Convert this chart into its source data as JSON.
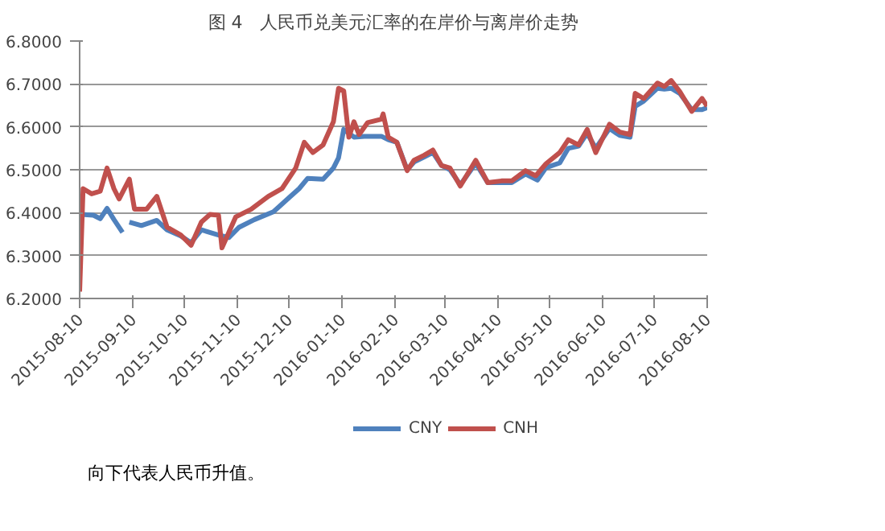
{
  "chart_data": {
    "type": "line",
    "title": "图 4　人民币兑美元汇率的在岸价与离岸价走势",
    "annotations": [
      "向下代表人民币升值。"
    ],
    "xlim": [
      "2015-08-10",
      "2016-08-10"
    ],
    "xticks": [
      "2015-08-10",
      "2015-09-10",
      "2015-10-10",
      "2015-11-10",
      "2015-12-10",
      "2016-01-10",
      "2016-02-10",
      "2016-03-10",
      "2016-04-10",
      "2016-05-10",
      "2016-06-10",
      "2016-07-10",
      "2016-08-10"
    ],
    "ylim": [
      6.2,
      6.8
    ],
    "yticks": [
      {
        "value": 6.2,
        "label": "6.2000"
      },
      {
        "value": 6.3,
        "label": "6.3000"
      },
      {
        "value": 6.4,
        "label": "6.4000"
      },
      {
        "value": 6.5,
        "label": "6.5000"
      },
      {
        "value": 6.6,
        "label": "6.6000"
      },
      {
        "value": 6.7,
        "label": "6.7000"
      },
      {
        "value": 6.8,
        "label": "6.8000"
      }
    ],
    "grid": "y",
    "legend": "bottom",
    "marker": "none",
    "line_style": "solid",
    "series": [
      {
        "name": "CNY",
        "color": "#4f81bd",
        "x": [
          "2015-08-11",
          "2015-08-18",
          "2015-08-22",
          "2015-08-26",
          "2015-08-30",
          "2015-09-04",
          "2015-09-06",
          "2015-09-08",
          "2015-09-15",
          "2015-09-24",
          "2015-09-30",
          "2015-10-08",
          "2015-10-14",
          "2015-10-20",
          "2015-10-30",
          "2015-11-05",
          "2015-11-11",
          "2015-11-20",
          "2015-12-01",
          "2015-12-11",
          "2015-12-16",
          "2015-12-21",
          "2015-12-30",
          "2016-01-05",
          "2016-01-08",
          "2016-01-11",
          "2016-01-17",
          "2016-01-23",
          "2016-02-02",
          "2016-02-06",
          "2016-02-11",
          "2016-02-17",
          "2016-02-21",
          "2016-02-27",
          "2016-03-03",
          "2016-03-08",
          "2016-03-13",
          "2016-03-19",
          "2016-03-28",
          "2016-04-04",
          "2016-04-12",
          "2016-04-18",
          "2016-04-26",
          "2016-05-03",
          "2016-05-08",
          "2016-05-16",
          "2016-05-21",
          "2016-05-27",
          "2016-06-01",
          "2016-06-06",
          "2016-06-14",
          "2016-06-20",
          "2016-06-26",
          "2016-06-29",
          "2016-07-04",
          "2016-07-12",
          "2016-07-16",
          "2016-07-20",
          "2016-07-25",
          "2016-08-01",
          "2016-08-07",
          "2016-08-10"
        ],
        "values": [
          6.396,
          6.394,
          6.386,
          6.41,
          6.384,
          6.354,
          null,
          6.378,
          6.37,
          6.382,
          6.36,
          6.346,
          6.33,
          6.36,
          6.348,
          6.342,
          6.366,
          6.384,
          6.402,
          6.438,
          6.456,
          6.48,
          6.478,
          6.504,
          6.528,
          6.594,
          6.576,
          6.578,
          6.578,
          6.57,
          6.564,
          6.5,
          6.518,
          6.53,
          6.54,
          6.51,
          6.5,
          6.465,
          6.515,
          6.47,
          6.47,
          6.47,
          6.49,
          6.476,
          6.505,
          6.516,
          6.55,
          6.555,
          6.585,
          6.55,
          6.596,
          6.58,
          6.576,
          6.648,
          6.66,
          6.69,
          6.688,
          6.69,
          6.678,
          6.64,
          6.64,
          6.645
        ]
      },
      {
        "name": "CNH",
        "color": "#c0504d",
        "x": [
          "2015-08-10",
          "2015-08-12",
          "2015-08-17",
          "2015-08-22",
          "2015-08-26",
          "2015-08-30",
          "2015-09-02",
          "2015-09-08",
          "2015-09-11",
          "2015-09-18",
          "2015-09-24",
          "2015-09-30",
          "2015-10-08",
          "2015-10-14",
          "2015-10-20",
          "2015-10-25",
          "2015-10-30",
          "2015-11-01",
          "2015-11-09",
          "2015-11-18",
          "2015-11-28",
          "2015-12-06",
          "2015-12-14",
          "2015-12-19",
          "2015-12-24",
          "2015-12-30",
          "2016-01-05",
          "2016-01-08",
          "2016-01-11",
          "2016-01-14",
          "2016-01-17",
          "2016-01-20",
          "2016-01-25",
          "2016-02-02",
          "2016-02-03",
          "2016-02-06",
          "2016-02-11",
          "2016-02-17",
          "2016-02-21",
          "2016-02-27",
          "2016-03-03",
          "2016-03-08",
          "2016-03-13",
          "2016-03-19",
          "2016-03-28",
          "2016-04-04",
          "2016-04-12",
          "2016-04-18",
          "2016-04-26",
          "2016-05-02",
          "2016-05-08",
          "2016-05-16",
          "2016-05-21",
          "2016-05-27",
          "2016-06-01",
          "2016-06-06",
          "2016-06-14",
          "2016-06-20",
          "2016-06-26",
          "2016-06-29",
          "2016-07-04",
          "2016-07-12",
          "2016-07-16",
          "2016-07-20",
          "2016-07-25",
          "2016-08-01",
          "2016-08-07",
          "2016-08-10"
        ],
        "values": [
          6.216,
          6.456,
          6.444,
          6.45,
          6.504,
          6.456,
          6.432,
          6.478,
          6.408,
          6.408,
          6.438,
          6.366,
          6.348,
          6.324,
          6.378,
          6.396,
          6.394,
          6.318,
          6.39,
          6.408,
          6.438,
          6.456,
          6.504,
          6.564,
          6.54,
          6.558,
          6.612,
          6.69,
          6.684,
          6.576,
          6.612,
          6.582,
          6.61,
          6.618,
          6.63,
          6.576,
          6.564,
          6.498,
          6.522,
          6.534,
          6.546,
          6.51,
          6.504,
          6.462,
          6.522,
          6.47,
          6.474,
          6.474,
          6.498,
          6.486,
          6.514,
          6.54,
          6.57,
          6.558,
          6.594,
          6.54,
          6.606,
          6.588,
          6.582,
          6.678,
          6.666,
          6.702,
          6.694,
          6.708,
          6.682,
          6.636,
          6.666,
          6.648
        ]
      }
    ]
  }
}
